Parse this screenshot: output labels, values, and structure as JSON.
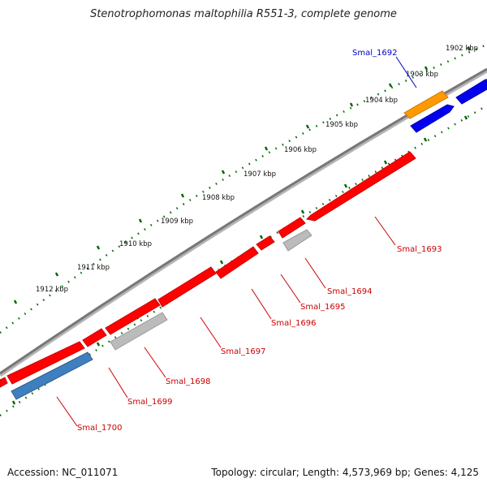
{
  "title": "Stenotrophomonas maltophilia R551-3, complete genome",
  "footer": {
    "accession": "Accession: NC_011071",
    "summary": "Topology: circular; Length: 4,573,969 bp; Genes: 4,125"
  },
  "colors": {
    "forward_cds": "#0000ee",
    "forward_gene": "#ff9900",
    "reverse_cds": "#ff0000",
    "pseudo": "#bbbbbb",
    "blue_gene": "#3f7fbf",
    "backbone": "#777777",
    "ticks": "#006600",
    "label_forward": "#0000cc",
    "label_reverse": "#cc0000"
  },
  "scale_labels": [
    "1902 kbp",
    "1903 kbp",
    "1904 kbp",
    "1905 kbp",
    "1906 kbp",
    "1907 kbp",
    "1908 kbp",
    "1909 kbp",
    "1910 kbp",
    "1911 kbp",
    "1912 kbp"
  ],
  "genes": [
    {
      "label": "Smal_1692",
      "strand": "forward"
    },
    {
      "label": "Smal_1693",
      "strand": "reverse"
    },
    {
      "label": "Smal_1694",
      "strand": "reverse"
    },
    {
      "label": "Smal_1695",
      "strand": "reverse"
    },
    {
      "label": "Smal_1696",
      "strand": "reverse"
    },
    {
      "label": "Smal_1697",
      "strand": "reverse"
    },
    {
      "label": "Smal_1698",
      "strand": "reverse"
    },
    {
      "label": "Smal_1699",
      "strand": "reverse"
    },
    {
      "label": "Smal_1700",
      "strand": "reverse"
    }
  ]
}
